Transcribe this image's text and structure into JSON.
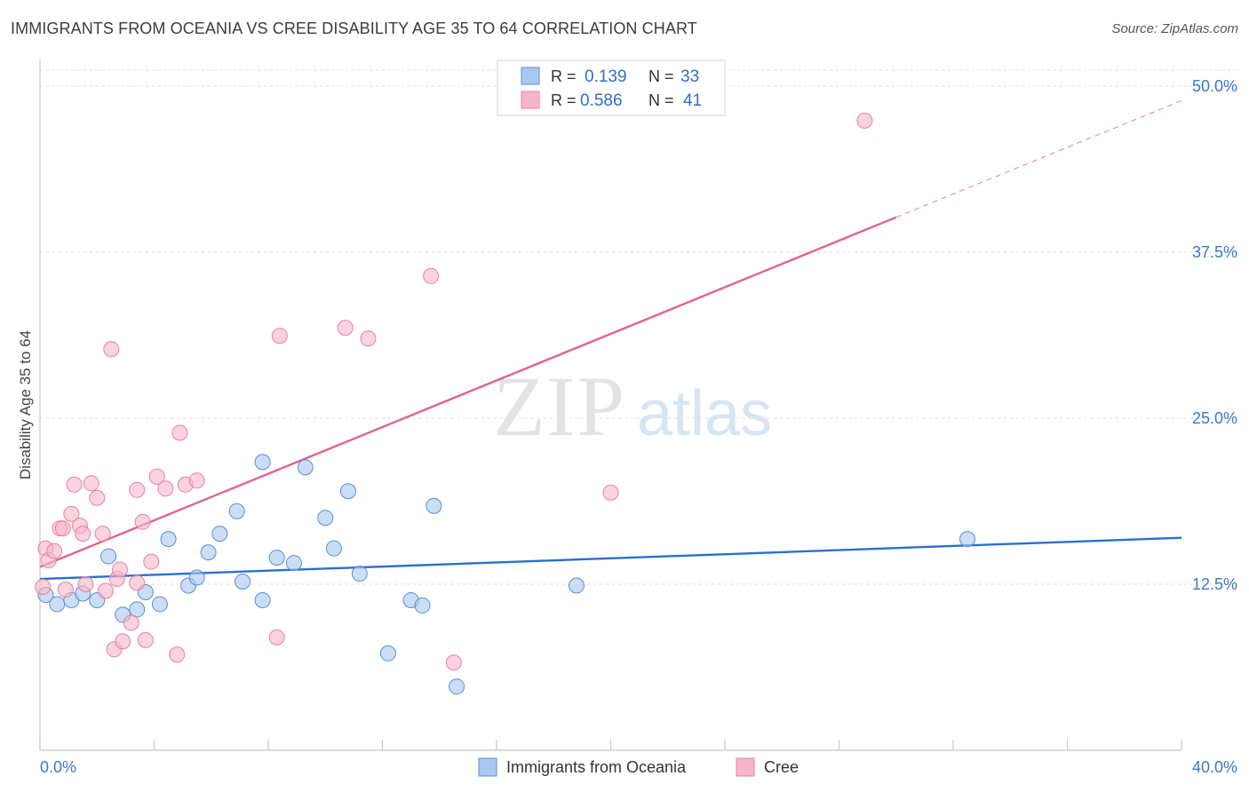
{
  "header": {
    "title": "IMMIGRANTS FROM OCEANIA VS CREE DISABILITY AGE 35 TO 64 CORRELATION CHART",
    "source": "Source: ZipAtlas.com"
  },
  "watermark": {
    "zip": "ZIP",
    "atlas": "atlas"
  },
  "legend": {
    "rows": [
      {
        "r_label": "R = ",
        "r_value": "0.139",
        "n_label": "N = ",
        "n_value": "33",
        "color": "#a9c8f0"
      },
      {
        "r_label": "R = ",
        "r_value": "0.586",
        "n_label": "N = ",
        "n_value": "41",
        "color": "#f7b6c8"
      }
    ]
  },
  "chart_data": {
    "type": "scatter",
    "title": "IMMIGRANTS FROM OCEANIA VS CREE DISABILITY AGE 35 TO 64 CORRELATION CHART",
    "xlabel": "",
    "ylabel": "Disability Age 35 to 64",
    "xlim": [
      0,
      40
    ],
    "ylim": [
      0,
      50
    ],
    "x_tick_labels": [
      "0.0%",
      "40.0%"
    ],
    "y_ticks": [
      12.5,
      25.0,
      37.5,
      50.0
    ],
    "y_tick_labels": [
      "12.5%",
      "25.0%",
      "37.5%",
      "50.0%"
    ],
    "grid": true,
    "series": [
      {
        "name": "Immigrants from Oceania",
        "color": "#a9c8f0",
        "stroke": "#5a8fd1",
        "line_color": "#2a6fce",
        "trend": {
          "x": [
            0,
            40
          ],
          "y": [
            12.9,
            16.0
          ],
          "dashed_from": null
        },
        "points": [
          [
            0.2,
            11.7
          ],
          [
            0.6,
            11.0
          ],
          [
            1.1,
            11.3
          ],
          [
            1.5,
            11.8
          ],
          [
            2.0,
            11.3
          ],
          [
            2.4,
            14.6
          ],
          [
            2.9,
            10.2
          ],
          [
            3.4,
            10.6
          ],
          [
            3.7,
            11.9
          ],
          [
            4.2,
            11.0
          ],
          [
            4.5,
            15.9
          ],
          [
            5.2,
            12.4
          ],
          [
            5.5,
            13.0
          ],
          [
            5.9,
            14.9
          ],
          [
            6.3,
            16.3
          ],
          [
            6.9,
            18.0
          ],
          [
            7.1,
            12.7
          ],
          [
            7.8,
            11.3
          ],
          [
            7.8,
            21.7
          ],
          [
            8.3,
            14.5
          ],
          [
            8.9,
            14.1
          ],
          [
            9.3,
            21.3
          ],
          [
            10.0,
            17.5
          ],
          [
            10.3,
            15.2
          ],
          [
            10.8,
            19.5
          ],
          [
            11.2,
            13.3
          ],
          [
            12.2,
            7.3
          ],
          [
            13.0,
            11.3
          ],
          [
            13.4,
            10.9
          ],
          [
            13.8,
            18.4
          ],
          [
            14.6,
            4.8
          ],
          [
            18.8,
            12.4
          ],
          [
            32.5,
            15.9
          ]
        ]
      },
      {
        "name": "Cree",
        "color": "#f7b6c8",
        "stroke": "#e8819f",
        "line_color": "#e0638f",
        "trend": {
          "x": [
            0,
            40
          ],
          "y": [
            13.8,
            48.9
          ],
          "dashed_from": 30.0
        },
        "points": [
          [
            0.1,
            12.3
          ],
          [
            0.2,
            15.2
          ],
          [
            0.3,
            14.3
          ],
          [
            0.5,
            15.0
          ],
          [
            0.7,
            16.7
          ],
          [
            0.8,
            16.7
          ],
          [
            0.9,
            12.1
          ],
          [
            1.1,
            17.8
          ],
          [
            1.2,
            20.0
          ],
          [
            1.4,
            16.9
          ],
          [
            1.5,
            16.3
          ],
          [
            1.6,
            12.5
          ],
          [
            1.8,
            20.1
          ],
          [
            2.0,
            19.0
          ],
          [
            2.2,
            16.3
          ],
          [
            2.3,
            12.0
          ],
          [
            2.5,
            30.2
          ],
          [
            2.6,
            7.6
          ],
          [
            2.7,
            12.9
          ],
          [
            2.8,
            13.6
          ],
          [
            2.9,
            8.2
          ],
          [
            3.2,
            9.6
          ],
          [
            3.4,
            12.6
          ],
          [
            3.4,
            19.6
          ],
          [
            3.6,
            17.2
          ],
          [
            3.7,
            8.3
          ],
          [
            3.9,
            14.2
          ],
          [
            4.1,
            20.6
          ],
          [
            4.4,
            19.7
          ],
          [
            4.8,
            7.2
          ],
          [
            4.9,
            23.9
          ],
          [
            5.1,
            20.0
          ],
          [
            5.5,
            20.3
          ],
          [
            8.3,
            8.5
          ],
          [
            8.4,
            31.2
          ],
          [
            10.7,
            31.8
          ],
          [
            11.5,
            31.0
          ],
          [
            13.7,
            35.7
          ],
          [
            14.5,
            6.6
          ],
          [
            20.0,
            19.4
          ],
          [
            28.9,
            47.4
          ]
        ]
      }
    ]
  }
}
